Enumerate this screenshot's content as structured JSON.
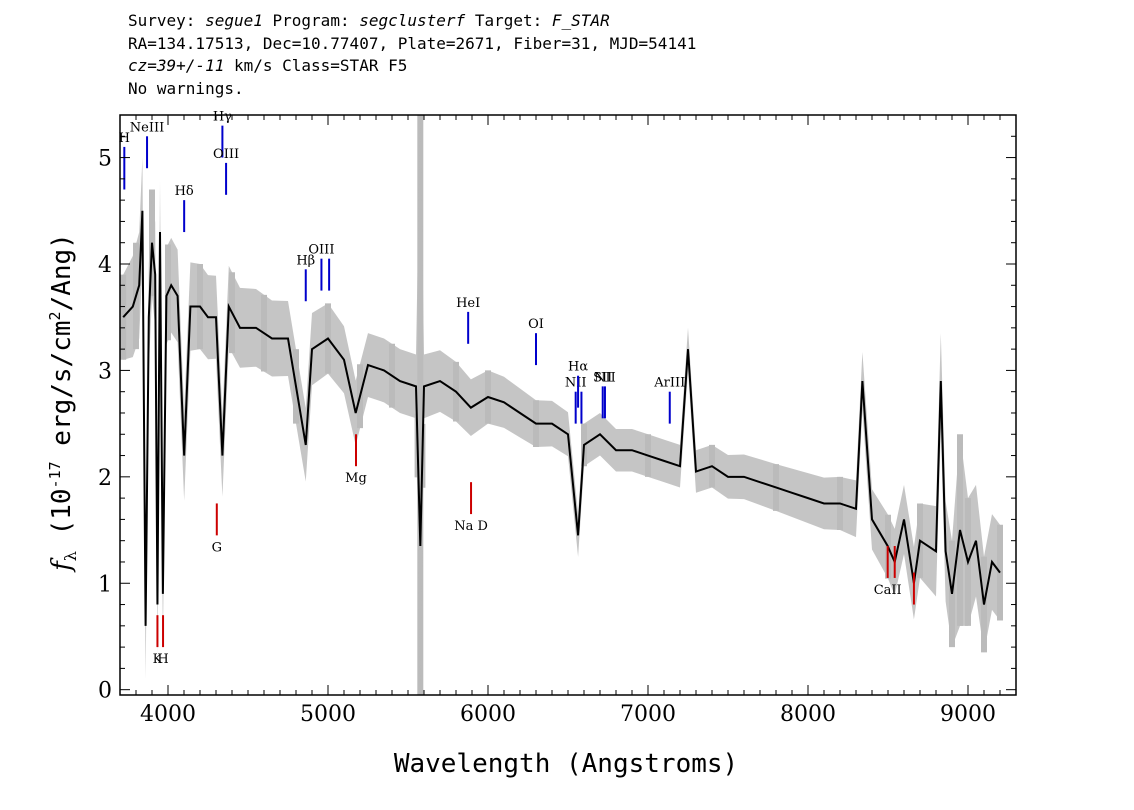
{
  "header": {
    "survey_label": "Survey:",
    "survey": "segue1",
    "program_label": "Program:",
    "program": "segclusterf",
    "target_label": "Target:",
    "target": "F_STAR",
    "line2": "RA=134.17513, Dec=10.77407, Plate=2671, Fiber=31, MJD=54141",
    "cz": "cz=39+/-11",
    "cz_rest": " km/s Class=STAR F5",
    "warnings": "No warnings."
  },
  "chart_data": {
    "type": "line",
    "title": "",
    "xlabel": "Wavelength (Angstroms)",
    "ylabel": "f_λ (10^-17 erg/s/cm^2/Ang)",
    "xlim": [
      3700,
      9300
    ],
    "ylim": [
      -0.05,
      5.4
    ],
    "x_ticks": [
      4000,
      5000,
      6000,
      7000,
      8000,
      9000
    ],
    "y_ticks": [
      0,
      1,
      2,
      3,
      4,
      5
    ],
    "series": [
      {
        "role": "flux",
        "color": "#000000",
        "x": [
          3720,
          3780,
          3820,
          3840,
          3860,
          3880,
          3900,
          3920,
          3934,
          3950,
          3968,
          3990,
          4020,
          4060,
          4101,
          4140,
          4200,
          4250,
          4300,
          4340,
          4380,
          4450,
          4550,
          4650,
          4750,
          4861,
          4900,
          5000,
          5100,
          5173,
          5250,
          5350,
          5450,
          5550,
          5577,
          5600,
          5700,
          5800,
          5893,
          6000,
          6100,
          6200,
          6300,
          6400,
          6500,
          6563,
          6600,
          6700,
          6800,
          6900,
          7000,
          7100,
          7200,
          7250,
          7300,
          7400,
          7500,
          7600,
          7700,
          7800,
          7900,
          8000,
          8100,
          8200,
          8300,
          8340,
          8400,
          8498,
          8542,
          8600,
          8662,
          8700,
          8800,
          8830,
          8860,
          8900,
          8950,
          9000,
          9050,
          9100,
          9150,
          9200
        ],
        "y": [
          3.5,
          3.6,
          3.8,
          4.5,
          0.6,
          3.5,
          4.2,
          3.9,
          0.8,
          4.3,
          0.9,
          3.7,
          3.8,
          3.7,
          2.2,
          3.6,
          3.6,
          3.5,
          3.5,
          2.2,
          3.6,
          3.4,
          3.4,
          3.3,
          3.3,
          2.3,
          3.2,
          3.3,
          3.1,
          2.6,
          3.05,
          3.0,
          2.9,
          2.85,
          1.35,
          2.85,
          2.9,
          2.8,
          2.65,
          2.75,
          2.7,
          2.6,
          2.5,
          2.5,
          2.4,
          1.45,
          2.3,
          2.4,
          2.25,
          2.25,
          2.2,
          2.15,
          2.1,
          3.2,
          2.05,
          2.1,
          2.0,
          2.0,
          1.95,
          1.9,
          1.85,
          1.8,
          1.75,
          1.75,
          1.7,
          2.9,
          1.6,
          1.35,
          1.2,
          1.6,
          1.0,
          1.4,
          1.3,
          2.9,
          1.3,
          0.9,
          1.5,
          1.2,
          1.4,
          0.8,
          1.2,
          1.1
        ]
      },
      {
        "role": "error",
        "color": "#bbbbbb",
        "x": [
          3720,
          3800,
          3900,
          4000,
          4200,
          4400,
          4600,
          4800,
          5000,
          5200,
          5400,
          5560,
          5577,
          5590,
          5800,
          6000,
          6300,
          6600,
          7000,
          7400,
          7800,
          8200,
          8500,
          8700,
          8900,
          8950,
          9000,
          9100,
          9200
        ],
        "y": [
          0.4,
          0.5,
          0.5,
          0.45,
          0.4,
          0.38,
          0.36,
          0.35,
          0.33,
          0.3,
          0.3,
          0.3,
          4.8,
          0.3,
          0.28,
          0.25,
          0.22,
          0.2,
          0.2,
          0.2,
          0.22,
          0.25,
          0.3,
          0.35,
          0.5,
          0.9,
          0.6,
          0.45,
          0.45
        ]
      }
    ],
    "emission_lines": [
      {
        "label": "H",
        "wavelength": 3727,
        "y_top": 5.1,
        "y_bottom": 4.7,
        "color": "#0000cc"
      },
      {
        "label": "NeIII",
        "wavelength": 3869,
        "y_top": 5.2,
        "y_bottom": 4.9,
        "color": "#0000cc"
      },
      {
        "label": "Hγ",
        "wavelength": 4340,
        "y_top": 5.3,
        "y_bottom": 5.0,
        "color": "#0000cc"
      },
      {
        "label": "OIII",
        "wavelength": 4363,
        "y_top": 4.95,
        "y_bottom": 4.65,
        "color": "#0000cc"
      },
      {
        "label": "Hδ",
        "wavelength": 4101,
        "y_top": 4.6,
        "y_bottom": 4.3,
        "color": "#0000cc"
      },
      {
        "label": "Hβ",
        "wavelength": 4861,
        "y_top": 3.95,
        "y_bottom": 3.65,
        "color": "#0000cc"
      },
      {
        "label": "OIII",
        "wavelength": 4959,
        "y_top": 4.05,
        "y_bottom": 3.75,
        "color": "#0000cc"
      },
      {
        "label": "",
        "wavelength": 5007,
        "y_top": 4.05,
        "y_bottom": 3.75,
        "color": "#0000cc"
      },
      {
        "label": "HeI",
        "wavelength": 5876,
        "y_top": 3.55,
        "y_bottom": 3.25,
        "color": "#0000cc"
      },
      {
        "label": "OI",
        "wavelength": 6300,
        "y_top": 3.35,
        "y_bottom": 3.05,
        "color": "#0000cc"
      },
      {
        "label": "NII",
        "wavelength": 6548,
        "y_top": 2.8,
        "y_bottom": 2.5,
        "color": "#0000cc"
      },
      {
        "label": "Hα",
        "wavelength": 6563,
        "y_top": 2.95,
        "y_bottom": 2.65,
        "color": "#0000cc"
      },
      {
        "label": "",
        "wavelength": 6584,
        "y_top": 2.8,
        "y_bottom": 2.5,
        "color": "#0000cc"
      },
      {
        "label": "SII",
        "wavelength": 6717,
        "y_top": 2.85,
        "y_bottom": 2.55,
        "color": "#0000cc"
      },
      {
        "label": "NII",
        "wavelength": 6731,
        "y_top": 2.85,
        "y_bottom": 2.55,
        "color": "#0000cc"
      },
      {
        "label": "ArIII",
        "wavelength": 7136,
        "y_top": 2.8,
        "y_bottom": 2.5,
        "color": "#0000cc"
      }
    ],
    "absorption_lines": [
      {
        "label": "K",
        "wavelength": 3934,
        "y_top": 0.7,
        "y_bottom": 0.4,
        "color": "#cc0000"
      },
      {
        "label": "H",
        "wavelength": 3969,
        "y_top": 0.7,
        "y_bottom": 0.4,
        "color": "#cc0000"
      },
      {
        "label": "G",
        "wavelength": 4305,
        "y_top": 1.75,
        "y_bottom": 1.45,
        "color": "#cc0000"
      },
      {
        "label": "Mg",
        "wavelength": 5175,
        "y_top": 2.4,
        "y_bottom": 2.1,
        "color": "#cc0000"
      },
      {
        "label": "Na D",
        "wavelength": 5894,
        "y_top": 1.95,
        "y_bottom": 1.65,
        "color": "#cc0000"
      },
      {
        "label": "CaII",
        "wavelength": 8498,
        "y_top": 1.35,
        "y_bottom": 1.05,
        "color": "#cc0000"
      },
      {
        "label": "",
        "wavelength": 8542,
        "y_top": 1.35,
        "y_bottom": 1.05,
        "color": "#cc0000"
      },
      {
        "label": "",
        "wavelength": 8662,
        "y_top": 1.1,
        "y_bottom": 0.8,
        "color": "#cc0000"
      }
    ]
  }
}
